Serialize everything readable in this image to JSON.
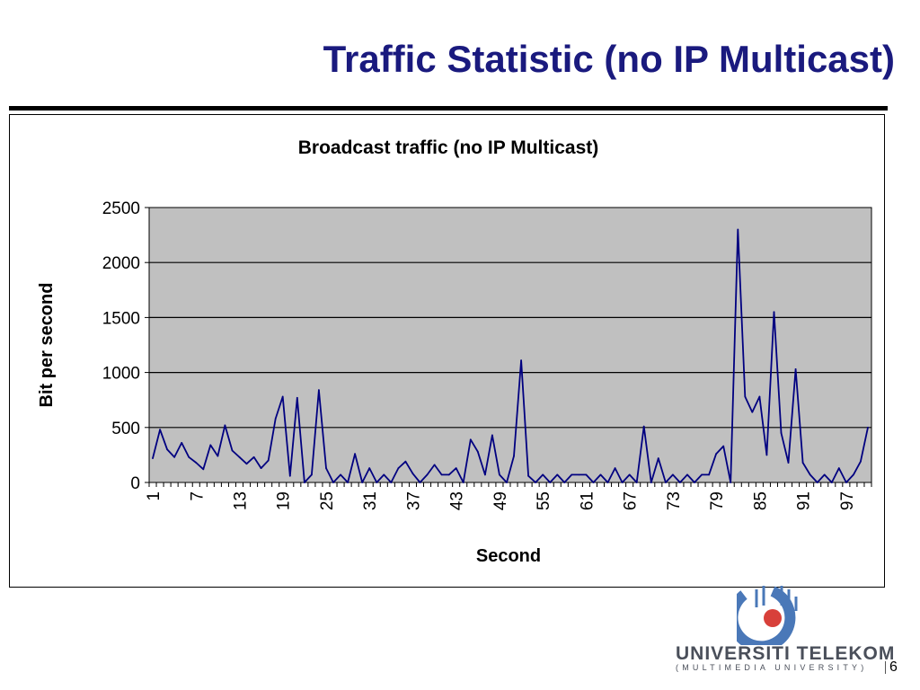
{
  "slide": {
    "title": "Traffic Statistic (no IP Multicast)",
    "page_number": "6"
  },
  "branding": {
    "name": "UNIVERSITI TELEKOM",
    "subtitle": "(MULTIMEDIA UNIVERSITY)"
  },
  "colors": {
    "title": "#1a1a7e",
    "plot_bg": "#c0c0c0",
    "series_line": "#000080",
    "brand_text": "#4a4f5a"
  },
  "chart_data": {
    "type": "line",
    "title": "Broadcast traffic (no IP Multicast)",
    "xlabel": "Second",
    "ylabel": "Bit per second",
    "ylim": [
      0,
      2500
    ],
    "yticks": [
      "0",
      "500",
      "1000",
      "1500",
      "2000",
      "2500"
    ],
    "x_tick_labels": [
      "1",
      "7",
      "13",
      "19",
      "25",
      "31",
      "37",
      "43",
      "49",
      "55",
      "61",
      "67",
      "73",
      "79",
      "85",
      "91",
      "97"
    ],
    "grid": "horizontal",
    "legend": "none",
    "x_count": 100,
    "series": [
      {
        "values": [
          220,
          480,
          300,
          230,
          360,
          230,
          180,
          120,
          340,
          240,
          520,
          290,
          230,
          170,
          230,
          130,
          200,
          580,
          780,
          60,
          770,
          0,
          70,
          840,
          130,
          0,
          70,
          0,
          260,
          0,
          130,
          0,
          70,
          0,
          130,
          190,
          80,
          0,
          70,
          160,
          70,
          70,
          130,
          0,
          390,
          280,
          70,
          430,
          70,
          0,
          240,
          1110,
          60,
          0,
          70,
          0,
          70,
          0,
          70,
          70,
          70,
          0,
          70,
          0,
          130,
          0,
          70,
          0,
          510,
          0,
          220,
          0,
          70,
          0,
          70,
          0,
          70,
          70,
          260,
          330,
          0,
          2300,
          780,
          640,
          780,
          250,
          1550,
          450,
          180,
          1030,
          180,
          70,
          0,
          70,
          0,
          130,
          0,
          70,
          190,
          500
        ]
      }
    ]
  }
}
